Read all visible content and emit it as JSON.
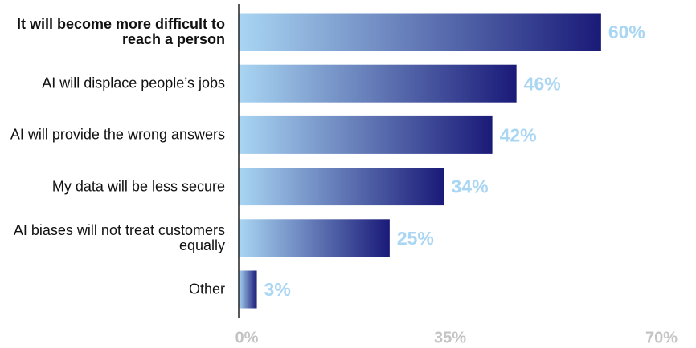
{
  "chart_data": {
    "type": "bar",
    "orientation": "horizontal",
    "categories": [
      "It will become more difficult to reach a person",
      "AI will displace people’s jobs",
      "AI will provide the wrong answers",
      "My data will be less secure",
      "AI biases will not treat customers equally",
      "Other"
    ],
    "values": [
      60,
      46,
      42,
      34,
      25,
      3
    ],
    "value_labels": [
      "60%",
      "46%",
      "42%",
      "34%",
      "25%",
      "3%"
    ],
    "gradient": [
      "#a9d6f3",
      "#1a1a78"
    ],
    "value_label_color": "#a9d6f3",
    "xlim": [
      0,
      70
    ],
    "xticks": [
      {
        "value": 0,
        "label": "0%"
      },
      {
        "value": 35,
        "label": "35%"
      },
      {
        "value": 70,
        "label": "70%"
      }
    ]
  }
}
